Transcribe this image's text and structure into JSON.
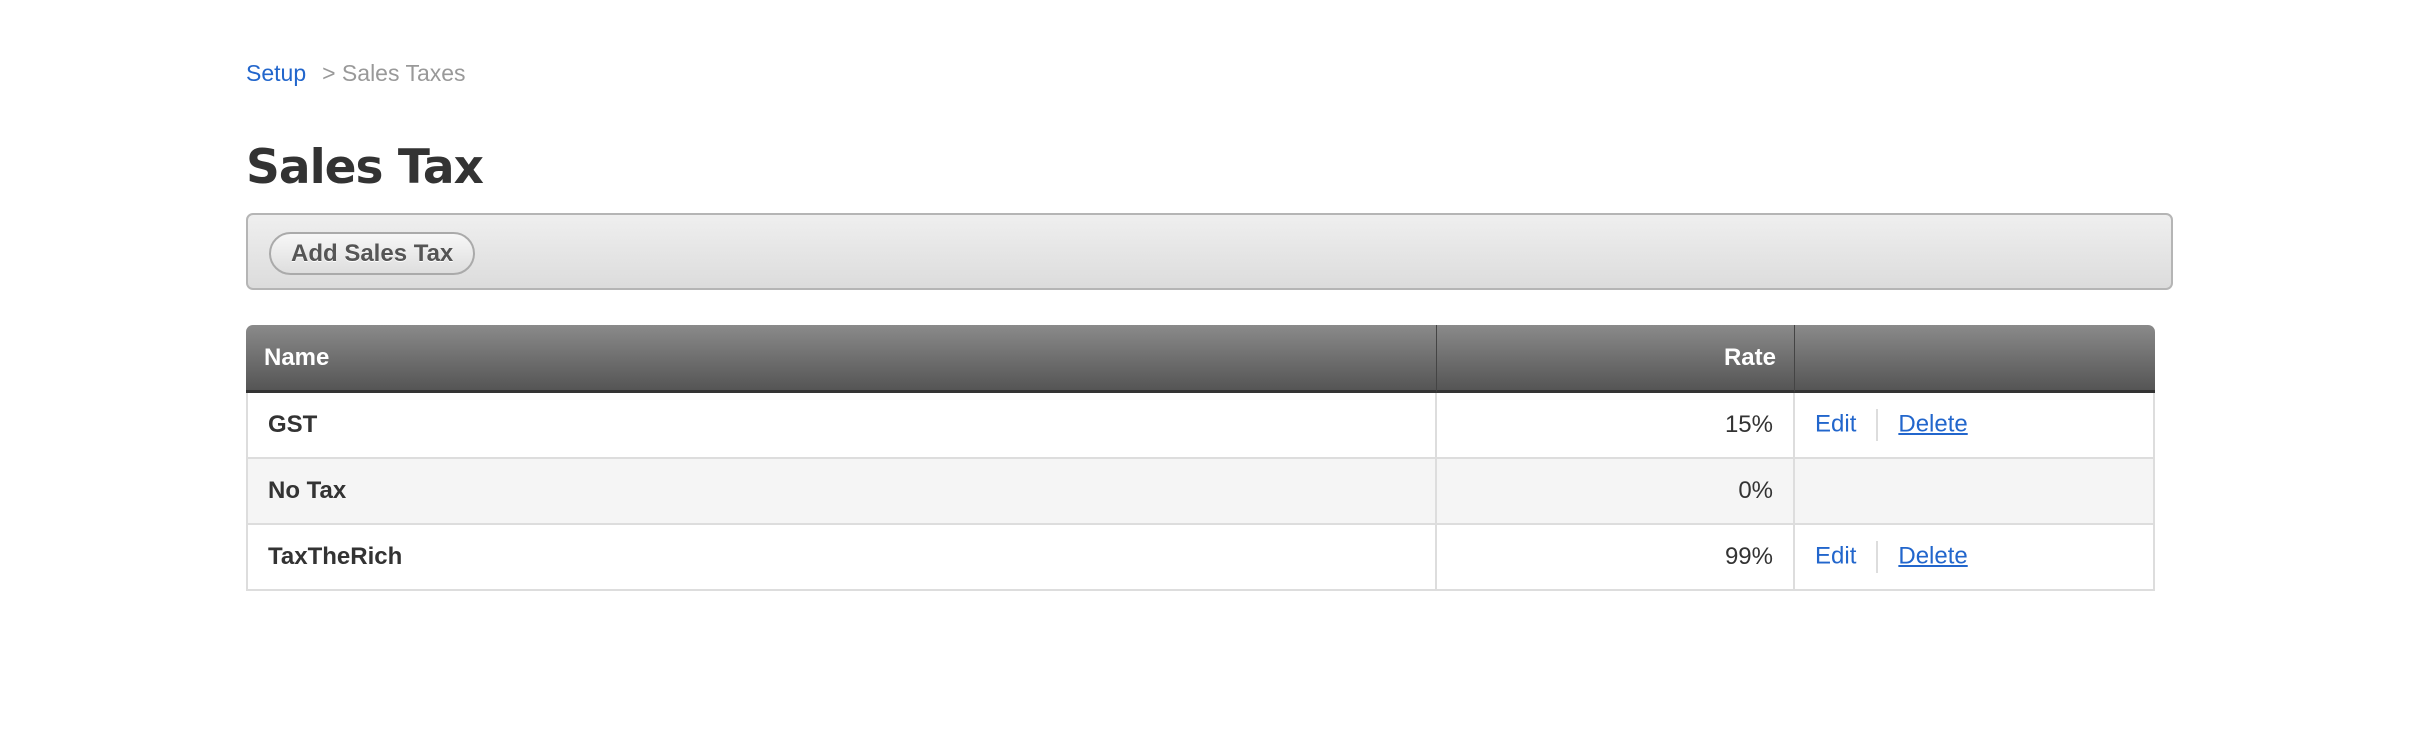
{
  "breadcrumb": {
    "link": "Setup",
    "current": "> Sales Taxes"
  },
  "page_title": "Sales Tax",
  "toolbar": {
    "add_label": "Add Sales Tax"
  },
  "table": {
    "columns": [
      "Name",
      "Rate",
      ""
    ],
    "rows": [
      {
        "name": "GST",
        "rate": "15%",
        "edit": "Edit",
        "delete": "Delete"
      },
      {
        "name": "No Tax",
        "rate": "0%"
      },
      {
        "name": "TaxTheRich",
        "rate": "99%",
        "edit": "Edit",
        "delete": "Delete"
      }
    ]
  },
  "colors": {
    "link": "#2266cc",
    "header_bg": "#6e6e6e"
  }
}
